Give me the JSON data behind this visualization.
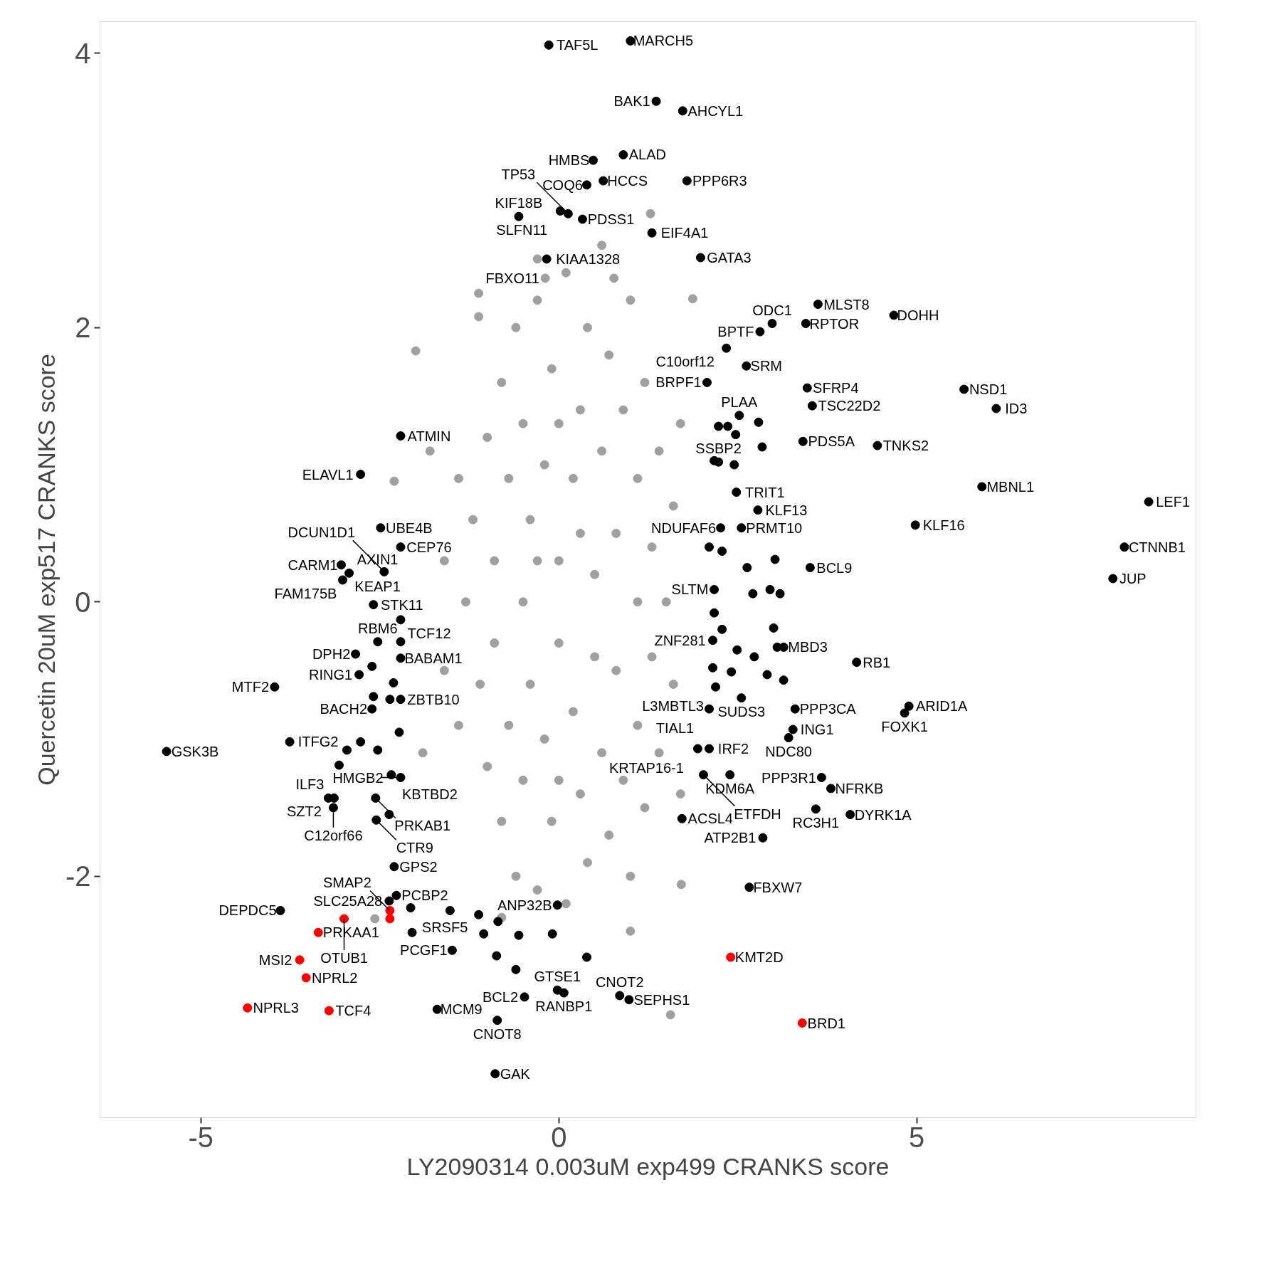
{
  "chart_data": {
    "type": "scatter",
    "xlabel": "LY2090314 0.003uM exp499 CRANKS score",
    "ylabel": "Quercetin 20uM exp517 CRANKS score",
    "xlim": [
      -6.41,
      8.9
    ],
    "ylim": [
      -3.76,
      4.23
    ],
    "xticks": [
      -5,
      0,
      5
    ],
    "yticks": [
      -2,
      0,
      2,
      4
    ],
    "grid": false,
    "marker": "circle",
    "series": [
      {
        "color": "#a0a0a0",
        "x": [
          -1.3,
          -1.2,
          -1.1,
          -1.0,
          -1.0,
          -0.9,
          -0.9,
          -0.8,
          -0.8,
          -0.7,
          -0.7,
          -0.6,
          -0.6,
          -0.5,
          -0.5,
          -0.5,
          -0.4,
          -0.4,
          -0.3,
          -0.3,
          -0.2,
          -0.2,
          -0.1,
          -0.1,
          0.0,
          0.0,
          0.1,
          0.1,
          0.2,
          0.2,
          0.3,
          0.3,
          0.4,
          0.4,
          0.5,
          0.5,
          0.6,
          0.6,
          0.7,
          0.7,
          0.8,
          0.8,
          0.9,
          0.9,
          1.0,
          1.0,
          1.1,
          1.1,
          1.1,
          1.2,
          1.2,
          1.3,
          1.3,
          1.4,
          1.4,
          1.5,
          1.6,
          1.6,
          1.7,
          1.7,
          -1.4,
          -1.4,
          -1.6,
          -1.6,
          -1.8,
          -1.9,
          0.0,
          0.0,
          -0.3,
          0.3,
          -2.0,
          -1.12,
          -1.12,
          1.28,
          1.56,
          1.71,
          -2.57,
          -2.3,
          1.87,
          0.77,
          -0.3,
          0.6,
          1.0,
          -0.8,
          -0.19
        ],
        "values": [
          0.0,
          0.6,
          -0.6,
          1.2,
          -1.2,
          0.3,
          -0.3,
          1.6,
          -1.6,
          0.9,
          -0.9,
          2.0,
          -2.0,
          0.0,
          1.3,
          -1.3,
          0.6,
          -0.6,
          2.2,
          -2.1,
          1.0,
          -1.0,
          1.7,
          -1.6,
          0.3,
          -0.3,
          2.4,
          -2.2,
          0.9,
          -0.8,
          1.4,
          -1.4,
          2.0,
          -1.9,
          0.2,
          -0.4,
          1.1,
          -1.1,
          1.8,
          -1.7,
          0.5,
          -0.5,
          1.4,
          -1.3,
          2.2,
          -2.0,
          0.0,
          0.9,
          -0.9,
          1.6,
          -1.5,
          0.4,
          -0.4,
          1.1,
          -1.1,
          0.0,
          0.7,
          -0.6,
          1.3,
          -1.4,
          0.9,
          -0.9,
          0.3,
          -0.5,
          1.1,
          -1.1,
          1.3,
          -1.3,
          0.3,
          0.5,
          1.83,
          2.25,
          2.08,
          2.83,
          -3.01,
          -2.06,
          -2.31,
          0.88,
          2.21,
          2.36,
          2.5,
          2.6,
          -2.4,
          -2.3,
          2.36
        ]
      },
      {
        "color": "#000000",
        "x": [
          1.0,
          -0.14,
          1.36,
          1.73,
          0.9,
          0.48,
          0.62,
          1.79,
          0.39,
          0.02,
          -0.56,
          1.3,
          -0.17,
          0.33,
          0.13,
          1.98,
          2.98,
          2.81,
          3.62,
          3.45,
          4.68,
          2.34,
          2.62,
          2.07,
          5.66,
          3.47,
          3.54,
          6.11,
          2.52,
          4.45,
          -2.21,
          3.41,
          -2.77,
          2.23,
          5.91,
          8.24,
          2.78,
          2.48,
          -2.49,
          4.98,
          2.55,
          2.26,
          7.9,
          -3.04,
          -3.02,
          -2.93,
          -2.21,
          3.51,
          -2.44,
          7.74,
          2.17,
          -2.59,
          -2.21,
          4.16,
          3.14,
          2.15,
          -2.84,
          -2.53,
          -2.21,
          -2.79,
          -3.97,
          2.19,
          2.55,
          3.3,
          4.89,
          4.83,
          -2.21,
          -2.61,
          2.1,
          3.27,
          2.1,
          1.94,
          3.21,
          -3.76,
          -5.48,
          -2.34,
          -2.21,
          3.67,
          -3.14,
          2.39,
          4.07,
          3.8,
          -2.56,
          -3.22,
          -3.15,
          2.02,
          3.59,
          -2.55,
          1.72,
          2.85,
          2.66,
          -2.3,
          -2.27,
          -2.07,
          -0.02,
          -2.37,
          -3.89,
          -1.49,
          -0.48,
          -1.7,
          0.07,
          -0.02,
          0.85,
          0.98,
          -0.86,
          -0.89,
          2.23,
          2.36,
          2.47,
          2.79,
          2.84,
          2.17,
          2.45,
          2.1,
          2.28,
          2.63,
          2.71,
          2.95,
          3.09,
          3.02,
          2.17,
          2.28,
          2.49,
          2.73,
          3.0,
          3.05,
          2.91,
          3.14,
          2.41,
          2.15,
          -2.21,
          -2.61,
          -2.31,
          -2.36,
          -2.59,
          -2.23,
          -2.77,
          -2.96,
          -3.07,
          -2.53,
          -2.37,
          -1.12,
          -0.85,
          -0.56,
          -0.09,
          0.39,
          -1.05,
          -0.6,
          -1.52,
          -2.05,
          -0.87
        ],
        "values": [
          4.09,
          4.06,
          3.65,
          3.58,
          3.26,
          3.22,
          3.07,
          3.07,
          3.04,
          2.85,
          2.81,
          2.69,
          2.5,
          2.79,
          2.83,
          2.51,
          2.03,
          1.97,
          2.17,
          2.03,
          2.09,
          1.85,
          1.72,
          1.6,
          1.55,
          1.56,
          1.43,
          1.41,
          1.36,
          1.14,
          1.21,
          1.17,
          0.93,
          1.02,
          0.84,
          0.73,
          0.67,
          0.8,
          0.54,
          0.56,
          0.54,
          0.54,
          0.4,
          0.27,
          0.16,
          0.21,
          0.4,
          0.25,
          0.22,
          0.17,
          0.09,
          -0.02,
          -0.13,
          -0.44,
          -0.33,
          -0.28,
          -0.38,
          -0.29,
          -0.41,
          -0.53,
          -0.62,
          -0.62,
          -0.7,
          -0.78,
          -0.76,
          -0.81,
          -0.71,
          -0.78,
          -0.78,
          -0.93,
          -1.07,
          -1.07,
          -0.99,
          -1.02,
          -1.09,
          -1.26,
          -1.28,
          -1.28,
          -1.43,
          -1.26,
          -1.55,
          -1.36,
          -1.43,
          -1.43,
          -1.5,
          -1.26,
          -1.51,
          -1.59,
          -1.58,
          -1.72,
          -2.08,
          -1.93,
          -2.14,
          -2.23,
          -2.21,
          -2.18,
          -2.25,
          -2.54,
          -2.88,
          -2.97,
          -2.85,
          -2.83,
          -2.87,
          -2.9,
          -3.05,
          -3.44,
          1.28,
          1.28,
          1.22,
          1.31,
          1.13,
          1.03,
          1.0,
          0.4,
          0.37,
          0.25,
          0.06,
          0.09,
          0.06,
          0.31,
          -0.08,
          -0.2,
          -0.35,
          -0.4,
          -0.19,
          -0.33,
          -0.53,
          -0.57,
          -0.51,
          -0.48,
          -0.29,
          -0.47,
          -0.59,
          -0.71,
          -0.69,
          -0.95,
          -1.02,
          -1.08,
          -1.19,
          -1.08,
          -1.55,
          -2.28,
          -2.33,
          -2.43,
          -2.42,
          -2.59,
          -2.42,
          -2.68,
          -2.25,
          -2.41,
          -2.58
        ]
      },
      {
        "color": "#ff0000",
        "x": [
          -3.36,
          -2.36,
          -3.62,
          -3.53,
          -3.0,
          -4.35,
          -3.21,
          -2.36,
          2.4,
          3.4
        ],
        "values": [
          -2.41,
          -2.31,
          -2.61,
          -2.74,
          -2.31,
          -2.96,
          -2.98,
          -2.25,
          -2.59,
          -3.07
        ]
      }
    ],
    "annotations": [
      {
        "text": "MARCH5",
        "x": 1.0,
        "y": 4.09
      },
      {
        "text": "TAF5L",
        "x": -0.14,
        "y": 4.06
      },
      {
        "text": "BAK1",
        "x": 1.36,
        "y": 3.65
      },
      {
        "text": "AHCYL1",
        "x": 1.73,
        "y": 3.58
      },
      {
        "text": "ALAD",
        "x": 0.9,
        "y": 3.26
      },
      {
        "text": "HMBS",
        "x": 0.48,
        "y": 3.22
      },
      {
        "text": "HCCS",
        "x": 0.62,
        "y": 3.07
      },
      {
        "text": "PPP6R3",
        "x": 1.79,
        "y": 3.07
      },
      {
        "text": "COQ6",
        "x": 0.39,
        "y": 3.04
      },
      {
        "text": "SLFN11",
        "x": 0.02,
        "y": 2.85
      },
      {
        "text": "KIF18B",
        "x": -0.56,
        "y": 2.81
      },
      {
        "text": "EIF4A1",
        "x": 1.3,
        "y": 2.69
      },
      {
        "text": "KIAA1328",
        "x": -0.17,
        "y": 2.5
      },
      {
        "text": "PDSS1",
        "x": 0.33,
        "y": 2.79
      },
      {
        "text": "TP53",
        "x": 0.13,
        "y": 2.83
      },
      {
        "text": "FBXO11",
        "x": -0.19,
        "y": 2.36
      },
      {
        "text": "GATA3",
        "x": 1.98,
        "y": 2.51
      },
      {
        "text": "ODC1",
        "x": 2.98,
        "y": 2.03
      },
      {
        "text": "BPTF",
        "x": 2.81,
        "y": 1.97
      },
      {
        "text": "MLST8",
        "x": 3.62,
        "y": 2.17
      },
      {
        "text": "RPTOR",
        "x": 3.45,
        "y": 2.03
      },
      {
        "text": "DOHH",
        "x": 4.68,
        "y": 2.09
      },
      {
        "text": "C10orf12",
        "x": 2.34,
        "y": 1.85
      },
      {
        "text": "SRM",
        "x": 2.62,
        "y": 1.72
      },
      {
        "text": "BRPF1",
        "x": 2.07,
        "y": 1.6
      },
      {
        "text": "NSD1",
        "x": 5.66,
        "y": 1.55
      },
      {
        "text": "SFRP4",
        "x": 3.47,
        "y": 1.56
      },
      {
        "text": "TSC22D2",
        "x": 3.54,
        "y": 1.43
      },
      {
        "text": "ID3",
        "x": 6.11,
        "y": 1.41
      },
      {
        "text": "PLAA",
        "x": 2.52,
        "y": 1.36
      },
      {
        "text": "TNKS2",
        "x": 4.45,
        "y": 1.14
      },
      {
        "text": "ATMIN",
        "x": -2.21,
        "y": 1.21
      },
      {
        "text": "PDS5A",
        "x": 3.41,
        "y": 1.17
      },
      {
        "text": "ELAVL1",
        "x": -2.77,
        "y": 0.93
      },
      {
        "text": "SSBP2",
        "x": 2.23,
        "y": 1.02
      },
      {
        "text": "MBNL1",
        "x": 5.91,
        "y": 0.84
      },
      {
        "text": "LEF1",
        "x": 8.24,
        "y": 0.73
      },
      {
        "text": "KLF13",
        "x": 2.78,
        "y": 0.67
      },
      {
        "text": "TRIT1",
        "x": 2.48,
        "y": 0.8
      },
      {
        "text": "UBE4B",
        "x": -2.49,
        "y": 0.54
      },
      {
        "text": "KLF16",
        "x": 4.98,
        "y": 0.56
      },
      {
        "text": "PRMT10",
        "x": 2.55,
        "y": 0.54
      },
      {
        "text": "NDUFAF6",
        "x": 2.26,
        "y": 0.54
      },
      {
        "text": "CTNNB1",
        "x": 7.9,
        "y": 0.4
      },
      {
        "text": "CARM1",
        "x": -3.04,
        "y": 0.27
      },
      {
        "text": "FAM175B",
        "x": -3.02,
        "y": 0.16
      },
      {
        "text": "AXIN1",
        "x": -2.93,
        "y": 0.21
      },
      {
        "text": "KEAP1",
        "x": -2.93,
        "y": 0.21
      },
      {
        "text": "CEP76",
        "x": -2.21,
        "y": 0.4
      },
      {
        "text": "BCL9",
        "x": 3.51,
        "y": 0.25
      },
      {
        "text": "DCUN1D1",
        "x": -2.44,
        "y": 0.22
      },
      {
        "text": "JUP",
        "x": 7.74,
        "y": 0.17
      },
      {
        "text": "SLTM",
        "x": 2.17,
        "y": 0.09
      },
      {
        "text": "STK11",
        "x": -2.59,
        "y": -0.02
      },
      {
        "text": "TCF12",
        "x": -2.21,
        "y": -0.13
      },
      {
        "text": "RB1",
        "x": 4.16,
        "y": -0.44
      },
      {
        "text": "MBD3",
        "x": 3.14,
        "y": -0.33
      },
      {
        "text": "ZNF281",
        "x": 2.15,
        "y": -0.28
      },
      {
        "text": "DPH2",
        "x": -2.84,
        "y": -0.38
      },
      {
        "text": "RBM6",
        "x": -2.53,
        "y": -0.29
      },
      {
        "text": "BABAM1",
        "x": -2.21,
        "y": -0.41
      },
      {
        "text": "RING1",
        "x": -2.79,
        "y": -0.53
      },
      {
        "text": "MTF2",
        "x": -3.97,
        "y": -0.62
      },
      {
        "text": "L3MBTL3",
        "x": 2.19,
        "y": -0.62
      },
      {
        "text": "SUDS3",
        "x": 2.55,
        "y": -0.7
      },
      {
        "text": "PPP3CA",
        "x": 3.3,
        "y": -0.78
      },
      {
        "text": "ARID1A",
        "x": 4.89,
        "y": -0.76
      },
      {
        "text": "FOXK1",
        "x": 4.83,
        "y": -0.81
      },
      {
        "text": "ZBTB10",
        "x": -2.21,
        "y": -0.71
      },
      {
        "text": "BACH2",
        "x": -2.61,
        "y": -0.78
      },
      {
        "text": "TIAL1",
        "x": 2.1,
        "y": -0.78
      },
      {
        "text": "ING1",
        "x": 3.27,
        "y": -0.93
      },
      {
        "text": "IRF2",
        "x": 2.1,
        "y": -1.07
      },
      {
        "text": "KRTAP16-1",
        "x": 1.94,
        "y": -1.07
      },
      {
        "text": "NDC80",
        "x": 3.21,
        "y": -0.99
      },
      {
        "text": "ITFG2",
        "x": -3.76,
        "y": -1.02
      },
      {
        "text": "GSK3B",
        "x": -5.48,
        "y": -1.09
      },
      {
        "text": "KBTBD2",
        "x": -2.34,
        "y": -1.26
      },
      {
        "text": "HMGB2",
        "x": -2.21,
        "y": -1.28
      },
      {
        "text": "PPP3R1",
        "x": 3.67,
        "y": -1.28
      },
      {
        "text": "ILF3",
        "x": -3.14,
        "y": -1.43
      },
      {
        "text": "KDM6A",
        "x": 2.39,
        "y": -1.26
      },
      {
        "text": "DYRK1A",
        "x": 4.07,
        "y": -1.55
      },
      {
        "text": "NFRKB",
        "x": 3.8,
        "y": -1.36
      },
      {
        "text": "PRKAB1",
        "x": -2.56,
        "y": -1.43
      },
      {
        "text": "SZT2",
        "x": -3.22,
        "y": -1.43
      },
      {
        "text": "C12orf66",
        "x": -3.15,
        "y": -1.5
      },
      {
        "text": "ETFDH",
        "x": 2.02,
        "y": -1.26
      },
      {
        "text": "RC3H1",
        "x": 3.59,
        "y": -1.51
      },
      {
        "text": "CTR9",
        "x": -2.55,
        "y": -1.59
      },
      {
        "text": "ACSL4",
        "x": 1.72,
        "y": -1.58
      },
      {
        "text": "ATP2B1",
        "x": 2.85,
        "y": -1.72
      },
      {
        "text": "FBXW7",
        "x": 2.66,
        "y": -2.08
      },
      {
        "text": "GPS2",
        "x": -2.3,
        "y": -1.93
      },
      {
        "text": "PCBP2",
        "x": -2.27,
        "y": -2.14
      },
      {
        "text": "SRSF5",
        "x": -2.07,
        "y": -2.23
      },
      {
        "text": "ANP32B",
        "x": -0.02,
        "y": -2.21
      },
      {
        "text": "SLC25A28",
        "x": -2.37,
        "y": -2.18
      },
      {
        "text": "DEPDC5",
        "x": -3.89,
        "y": -2.25
      },
      {
        "text": "KMT2D",
        "x": 2.4,
        "y": -2.59
      },
      {
        "text": "PRKAA1",
        "x": -3.36,
        "y": -2.41
      },
      {
        "text": "SMAP2",
        "x": -2.36,
        "y": -2.25
      },
      {
        "text": "OTUB1",
        "x": -3.0,
        "y": -2.31
      },
      {
        "text": "MSI2",
        "x": -3.62,
        "y": -2.61
      },
      {
        "text": "NPRL2",
        "x": -3.53,
        "y": -2.74
      },
      {
        "text": "NPRL3",
        "x": -4.35,
        "y": -2.96
      },
      {
        "text": "TCF4",
        "x": -3.21,
        "y": -2.98
      },
      {
        "text": "BRD1",
        "x": 3.4,
        "y": -3.07
      },
      {
        "text": "PCGF1",
        "x": -1.49,
        "y": -2.54
      },
      {
        "text": "BCL2",
        "x": -0.48,
        "y": -2.88
      },
      {
        "text": "MCM9",
        "x": -1.7,
        "y": -2.97
      },
      {
        "text": "RANBP1",
        "x": 0.07,
        "y": -2.85
      },
      {
        "text": "GTSE1",
        "x": -0.02,
        "y": -2.83
      },
      {
        "text": "CNOT2",
        "x": 0.85,
        "y": -2.87
      },
      {
        "text": "SEPHS1",
        "x": 0.98,
        "y": -2.9
      },
      {
        "text": "CNOT8",
        "x": -0.86,
        "y": -3.05
      },
      {
        "text": "GAK",
        "x": -0.89,
        "y": -3.44
      }
    ]
  }
}
